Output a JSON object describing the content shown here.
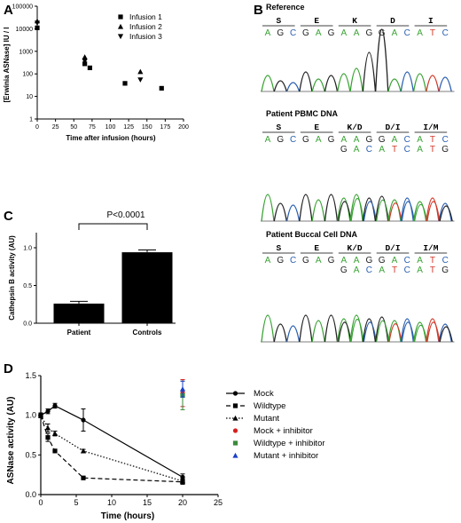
{
  "panel_labels": [
    "A",
    "B",
    "C",
    "D"
  ],
  "colors": {
    "A": "#3aa335",
    "G": "#222222",
    "C": "#2a5fb0",
    "T": "#d23a2a",
    "mock_inh": "#d62020",
    "wt_inh": "#3b8a3b",
    "mut_inh": "#1a3fc9"
  },
  "chart_data": [
    {
      "id": "A",
      "type": "scatter",
      "xlabel": "Time after infusion (hours)",
      "ylabel": "[Erwinia ASNase] IU / l",
      "xlim": [
        0,
        200
      ],
      "xticks": [
        "0",
        "25",
        "50",
        "75",
        "100",
        "125",
        "150",
        "175",
        "200"
      ],
      "ylog": true,
      "ylim": [
        1,
        100000
      ],
      "yticks": [
        "1",
        "10",
        "100",
        "1000",
        "10000",
        "100000"
      ],
      "legend_position": "top-right",
      "series": [
        {
          "name": "Infusion 1",
          "marker": "square",
          "points": [
            [
              0,
              11000
            ],
            [
              65,
              280
            ],
            [
              72,
              185
            ],
            [
              120,
              38
            ],
            [
              170,
              23
            ]
          ]
        },
        {
          "name": "Infusion 2",
          "marker": "triangle-up",
          "points": [
            [
              0,
              22000
            ],
            [
              65,
              560
            ],
            [
              141,
              125
            ]
          ]
        },
        {
          "name": "Infusion 3",
          "marker": "triangle-down",
          "points": [
            [
              0,
              18000
            ],
            [
              65,
              370
            ],
            [
              141,
              55
            ]
          ]
        }
      ]
    },
    {
      "id": "C",
      "type": "bar",
      "ylabel": "Cathepsin B activity (AU)",
      "categories": [
        "Patient",
        "Controls"
      ],
      "values": [
        0.26,
        0.94
      ],
      "errors": [
        0.03,
        0.03
      ],
      "ylim": [
        0,
        1.2
      ],
      "yticks": [
        "0.0",
        "0.5",
        "1.0"
      ],
      "annotation": "P<0.0001"
    },
    {
      "id": "D",
      "type": "line",
      "xlabel": "Time (hours)",
      "ylabel": "ASNase activity (AU)",
      "xlim": [
        0,
        25
      ],
      "xticks": [
        "0",
        "5",
        "10",
        "15",
        "20",
        "25"
      ],
      "ylim": [
        0,
        1.5
      ],
      "yticks": [
        "0.0",
        "0.5",
        "1.0",
        "1.5"
      ],
      "legend_position": "right",
      "series": [
        {
          "name": "Mock",
          "style": "solid",
          "marker": "circle",
          "x": [
            0,
            1,
            2,
            6,
            20
          ],
          "y": [
            1.0,
            1.05,
            1.12,
            0.94,
            0.22
          ],
          "err": [
            0.03,
            0.03,
            0.03,
            0.14,
            0.04
          ]
        },
        {
          "name": "Wildtype",
          "style": "dashed",
          "marker": "square",
          "x": [
            0,
            1,
            2,
            6,
            20
          ],
          "y": [
            1.0,
            0.72,
            0.55,
            0.21,
            0.16
          ],
          "err": [
            0.03,
            0.05,
            0.02,
            0.02,
            0.03
          ]
        },
        {
          "name": "Mutant",
          "style": "dotted",
          "marker": "triangle-up",
          "x": [
            0,
            1,
            2,
            6,
            20
          ],
          "y": [
            1.0,
            0.84,
            0.77,
            0.55,
            0.17
          ],
          "err": [
            0.03,
            0.05,
            0.03,
            0.02,
            0.03
          ]
        },
        {
          "name": "Mock + inhibitor",
          "style": "none",
          "marker": "circle",
          "x": [
            20
          ],
          "y": [
            1.28
          ],
          "err": [
            0.17
          ]
        },
        {
          "name": "Wildtype + inhibitor",
          "style": "none",
          "marker": "square",
          "x": [
            20
          ],
          "y": [
            1.25
          ],
          "err": [
            0.18
          ]
        },
        {
          "name": "Mutant + inhibitor",
          "style": "none",
          "marker": "triangle-up",
          "x": [
            20
          ],
          "y": [
            1.33
          ],
          "err": [
            0.1
          ]
        }
      ]
    }
  ],
  "sequencing": {
    "reference": {
      "title": "Reference",
      "codons": [
        "S",
        "E",
        "K",
        "D",
        "I"
      ],
      "bases": [
        "A",
        "G",
        "C",
        "G",
        "A",
        "G",
        "A",
        "A",
        "G",
        "G",
        "A",
        "C",
        "A",
        "T",
        "C"
      ]
    },
    "pbmc": {
      "title": "Patient PBMC DNA",
      "codons": [
        "S",
        "E",
        "K/D",
        "D/I",
        "I/M"
      ],
      "bases_top": [
        "A",
        "G",
        "C",
        "G",
        "A",
        "G",
        "A",
        "A",
        "G",
        "G",
        "A",
        "C",
        "A",
        "T",
        "C"
      ],
      "bases_bottom": [
        "G",
        "A",
        "C",
        "A",
        "T",
        "C",
        "A",
        "T",
        "G"
      ]
    },
    "buccal": {
      "title": "Patient Buccal Cell DNA",
      "codons": [
        "S",
        "E",
        "K/D",
        "D/I",
        "I/M"
      ],
      "bases_top": [
        "A",
        "G",
        "C",
        "G",
        "A",
        "G",
        "A",
        "A",
        "G",
        "G",
        "A",
        "C",
        "A",
        "T",
        "C"
      ],
      "bases_bottom": [
        "G",
        "A",
        "C",
        "A",
        "T",
        "C",
        "A",
        "T",
        "G"
      ]
    }
  }
}
